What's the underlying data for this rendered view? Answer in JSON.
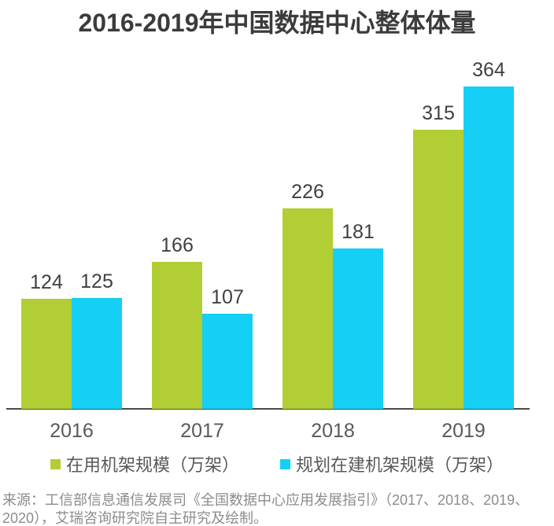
{
  "title": "2016-2019年中国数据中心整体体量",
  "chart_data": {
    "type": "bar",
    "categories": [
      "2016",
      "2017",
      "2018",
      "2019"
    ],
    "series": [
      {
        "name": "在用机架规模（万架）",
        "color": "#b1ce34",
        "values": [
          124,
          166,
          226,
          315
        ]
      },
      {
        "name": "规划在建机架规模（万架）",
        "color": "#16cff4",
        "values": [
          125,
          107,
          181,
          364
        ]
      }
    ],
    "title": "2016-2019年中国数据中心整体体量",
    "xlabel": "",
    "ylabel": "",
    "grid": false,
    "value_labels": true,
    "legend_position": "bottom"
  },
  "legend": {
    "items": [
      {
        "label": "在用机架规模（万架）",
        "color": "#b1ce34"
      },
      {
        "label": "规划在建机架规模（万架）",
        "color": "#16cff4"
      }
    ]
  },
  "source": {
    "line1": "来源：工信部信息通信发展司《全国数据中心应用发展指引》（2017、2018、2019、",
    "line2": "2020），艾瑞咨询研究院自主研究及绘制。",
    "full_text": "来源：工信部信息通信发展司《全国数据中心应用发展指引》（2017、2018、2019、2020），艾瑞咨询研究院自主研究及绘制。"
  },
  "colors": {
    "bar_green": "#b1ce34",
    "bar_blue": "#16cff4",
    "axis_line": "#4a4a4a",
    "title_text": "#3b3b3b",
    "value_text": "#404040",
    "tick_text": "#595959",
    "legend_text": "#595959",
    "source_text": "#8c8c8c"
  }
}
